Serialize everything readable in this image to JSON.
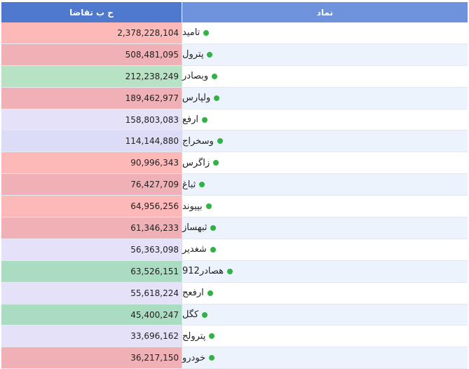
{
  "header": {
    "value_col": "ح ب تقاضا",
    "symbol_col": "نماد"
  },
  "rows": [
    {
      "symbol": "تامید",
      "value": "2,378,228,104",
      "color": "#fdb8b8"
    },
    {
      "symbol": "پترول",
      "value": "508,481,095",
      "color": "#efb1b5"
    },
    {
      "symbol": "وبصادر",
      "value": "212,238,249",
      "color": "#b7e2c3"
    },
    {
      "symbol": "ولپارس",
      "value": "189,462,977",
      "color": "#efb1b5"
    },
    {
      "symbol": "ارفع",
      "value": "158,803,083",
      "color": "#e4e1f8"
    },
    {
      "symbol": "وسخراج",
      "value": "114,144,880",
      "color": "#dddcf7"
    },
    {
      "symbol": "زاگرس",
      "value": "90,996,343",
      "color": "#fdb8b8"
    },
    {
      "symbol": "ثباغ",
      "value": "76,427,709",
      "color": "#efb1b5"
    },
    {
      "symbol": "بپیوند",
      "value": "64,956,256",
      "color": "#fdb8b8"
    },
    {
      "symbol": "ثبهساز",
      "value": "61,346,233",
      "color": "#efb1b5"
    },
    {
      "symbol": "شغدیر",
      "value": "56,363,098",
      "color": "#e4e1f8"
    },
    {
      "symbol": "هصادر912",
      "value": "63,526,151",
      "color": "#a9dcc1"
    },
    {
      "symbol": "ارفعح",
      "value": "55,618,224",
      "color": "#e4e1f8"
    },
    {
      "symbol": "کگل",
      "value": "45,400,247",
      "color": "#a9dcc1"
    },
    {
      "symbol": "پترولح",
      "value": "33,696,162",
      "color": "#e4e1f8"
    },
    {
      "symbol": "خودرو",
      "value": "36,217,150",
      "color": "#efb1b5"
    }
  ]
}
